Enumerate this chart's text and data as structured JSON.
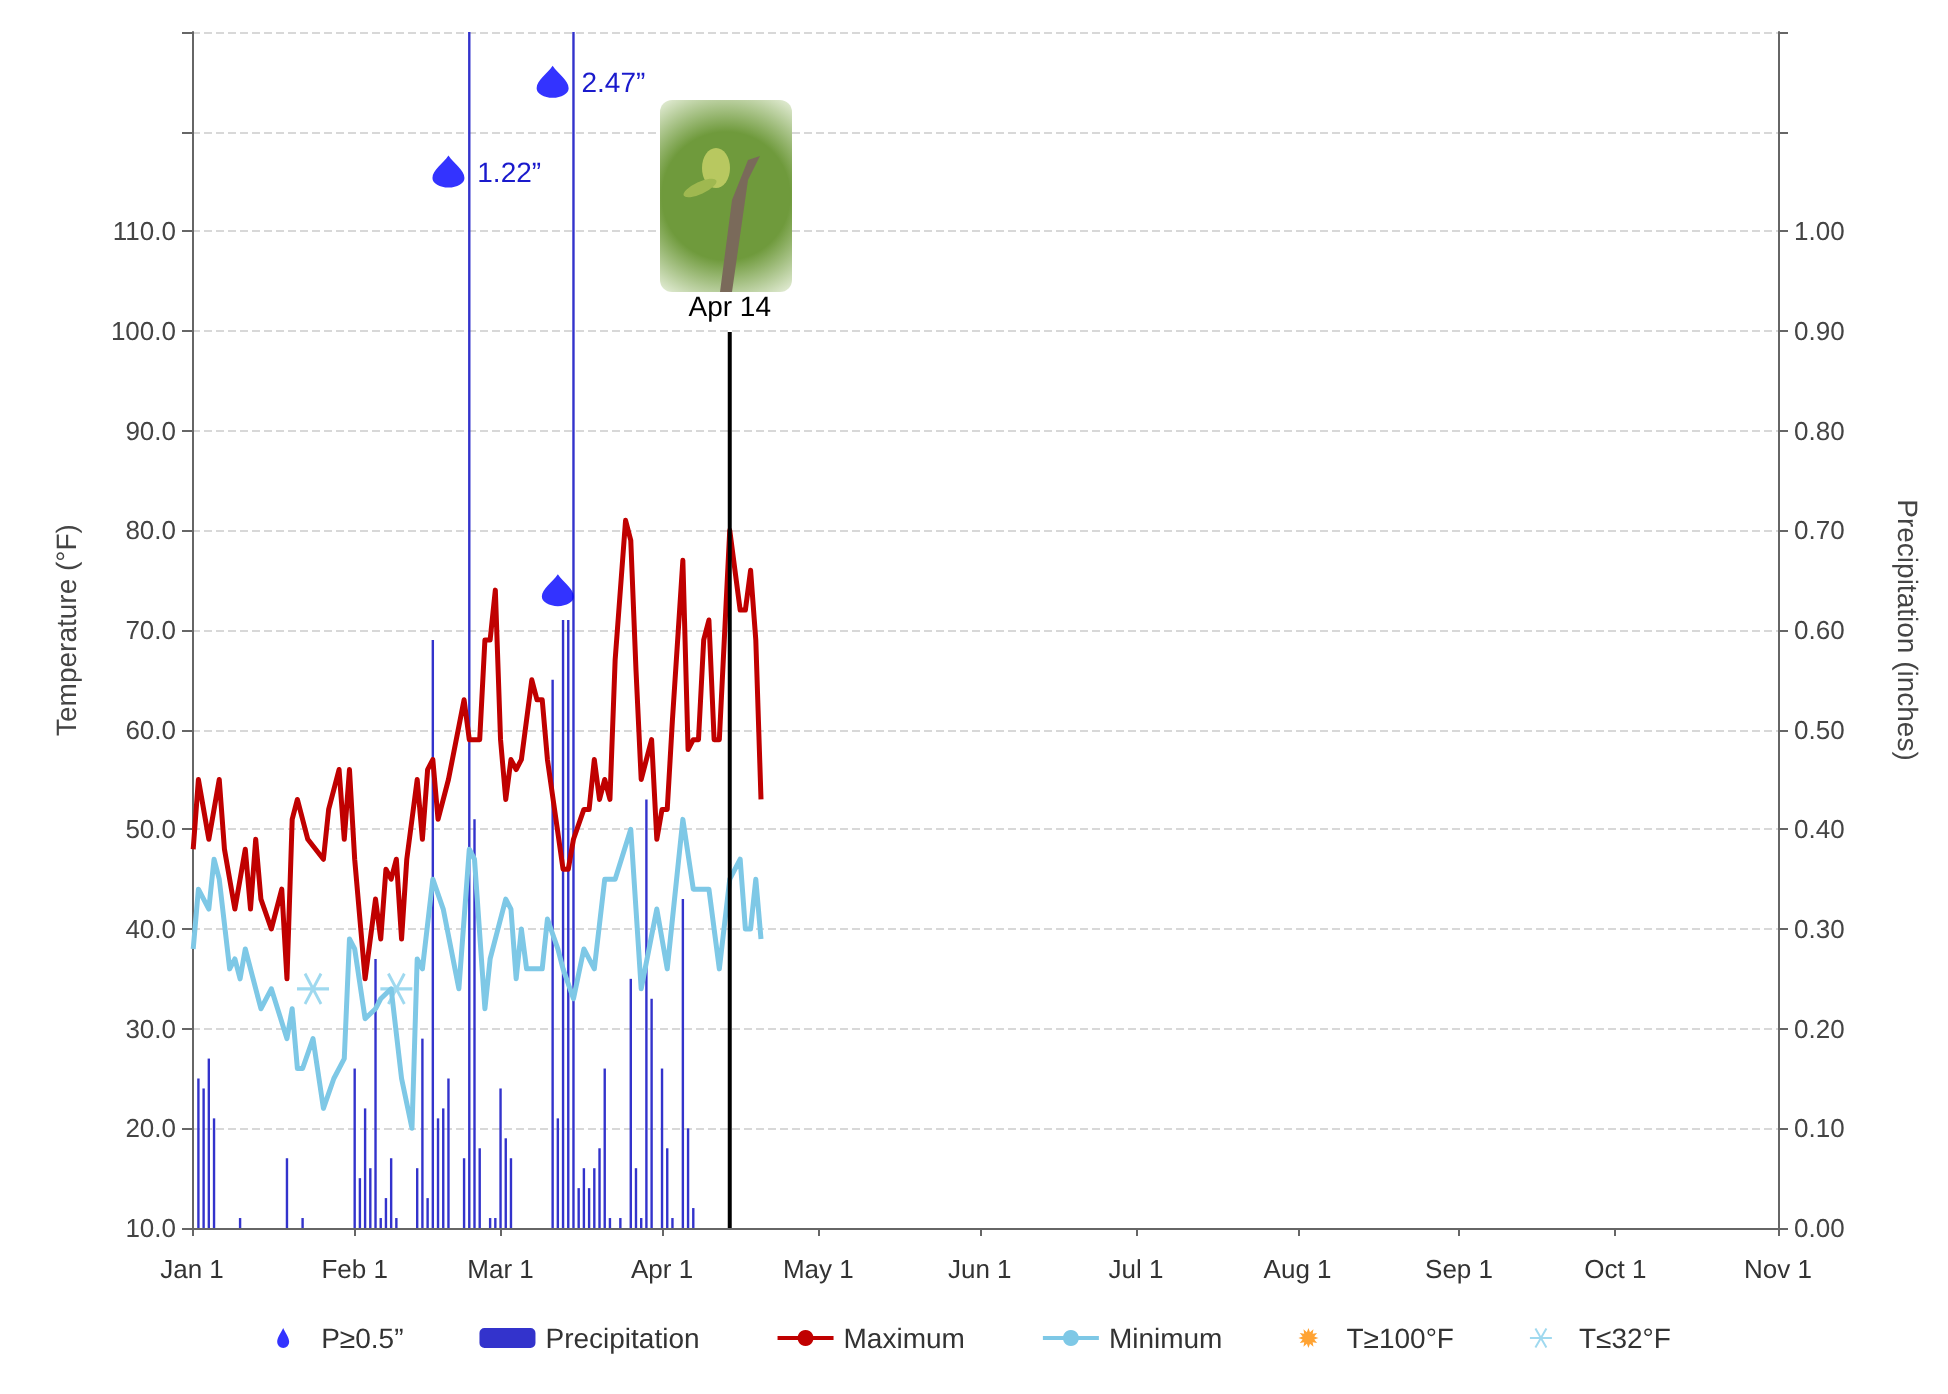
{
  "chart_data": {
    "type": "line",
    "ylabel": "Temperature (°F)",
    "y2label": "Precipitation (inches)",
    "xlim": [
      "--01-01",
      "--11-01"
    ],
    "xticks": [
      {
        "value": "--01-01",
        "label": "Jan 1"
      },
      {
        "value": "--02-01",
        "label": "Feb 1"
      },
      {
        "value": "--03-01",
        "label": "Mar 1"
      },
      {
        "value": "--04-01",
        "label": "Apr 1"
      },
      {
        "value": "--05-01",
        "label": "May 1"
      },
      {
        "value": "--06-01",
        "label": "Jun 1"
      },
      {
        "value": "--07-01",
        "label": "Jul 1"
      },
      {
        "value": "--08-01",
        "label": "Aug 1"
      },
      {
        "value": "--09-01",
        "label": "Sep 1"
      },
      {
        "value": "--10-01",
        "label": "Oct 1"
      },
      {
        "value": "--11-01",
        "label": "Nov 1"
      }
    ],
    "ylim": [
      10,
      130
    ],
    "yticks": [
      {
        "value": 10,
        "label": "10.0"
      },
      {
        "value": 20,
        "label": "20.0"
      },
      {
        "value": 30,
        "label": "30.0"
      },
      {
        "value": 40,
        "label": "40.0"
      },
      {
        "value": 50,
        "label": "50.0"
      },
      {
        "value": 60,
        "label": "60.0"
      },
      {
        "value": 70,
        "label": "70.0"
      },
      {
        "value": 80,
        "label": "80.0"
      },
      {
        "value": 90,
        "label": "90.0"
      },
      {
        "value": 100,
        "label": "100.0"
      },
      {
        "value": 110,
        "label": "110.0"
      },
      {
        "value": 120,
        "label": null
      },
      {
        "value": 130,
        "label": null
      }
    ],
    "y2lim": [
      0,
      1.2
    ],
    "y2ticks": [
      {
        "value": 0,
        "label": "0.00"
      },
      {
        "value": 0.1,
        "label": "0.10"
      },
      {
        "value": 0.2,
        "label": "0.20"
      },
      {
        "value": 0.3,
        "label": "0.30"
      },
      {
        "value": 0.4,
        "label": "0.40"
      },
      {
        "value": 0.5,
        "label": "0.50"
      },
      {
        "value": 0.6,
        "label": "0.60"
      },
      {
        "value": 0.7,
        "label": "0.70"
      },
      {
        "value": 0.8,
        "label": "0.80"
      },
      {
        "value": 0.9,
        "label": "0.90"
      },
      {
        "value": 1,
        "label": "1.00"
      },
      {
        "value": 1.1,
        "label": null
      },
      {
        "value": 1.2,
        "label": null
      }
    ],
    "grid": "y",
    "legend": "bottom",
    "ref_lines": [
      {
        "axis": "x",
        "value": "--02-23",
        "label": "1.22”",
        "color": "#3333cc"
      },
      {
        "axis": "x",
        "value": "--03-15",
        "label": "2.47”",
        "color": "#3333cc"
      },
      {
        "axis": "x",
        "value": "--04-14",
        "label": "Apr 14",
        "color": "#000000"
      }
    ],
    "series": [
      {
        "name": "P≥0.5”",
        "type": "scatter",
        "axis": "y2",
        "color": "#0000ff",
        "x": [
          "--02-19",
          "--03-11",
          "--03-12"
        ],
        "values": [
          1.06,
          1.15,
          0.64
        ]
      },
      {
        "name": "Precipitation",
        "type": "bar",
        "axis": "y2",
        "color": "#3333cc",
        "x": [
          "--01-02",
          "--01-03",
          "--01-04",
          "--01-05",
          "--01-10",
          "--01-19",
          "--01-22",
          "--02-01",
          "--02-02",
          "--02-03",
          "--02-04",
          "--02-05",
          "--02-06",
          "--02-07",
          "--02-08",
          "--02-09",
          "--02-13",
          "--02-14",
          "--02-15",
          "--02-16",
          "--02-17",
          "--02-18",
          "--02-19",
          "--02-22",
          "--02-23",
          "--02-24",
          "--02-25",
          "--02-27",
          "--02-28",
          "--03-01",
          "--03-02",
          "--03-03",
          "--03-11",
          "--03-12",
          "--03-13",
          "--03-14",
          "--03-15",
          "--03-16",
          "--03-17",
          "--03-18",
          "--03-19",
          "--03-20",
          "--03-21",
          "--03-22",
          "--03-24",
          "--03-26",
          "--03-27",
          "--03-28",
          "--03-29",
          "--03-30",
          "--04-01",
          "--04-02",
          "--04-03",
          "--04-05",
          "--04-06",
          "--04-07"
        ],
        "values": [
          0.15,
          0.14,
          0.17,
          0.11,
          0.01,
          0.07,
          0.01,
          0.16,
          0.05,
          0.12,
          0.06,
          0.27,
          0.01,
          0.03,
          0.07,
          0.01,
          0.06,
          0.19,
          0.03,
          0.59,
          0.11,
          0.12,
          0.15,
          0.07,
          null,
          0.41,
          0.08,
          0.01,
          0.01,
          0.14,
          0.09,
          0.07,
          0.55,
          0.11,
          0.61,
          0.61,
          null,
          0.04,
          0.06,
          0.04,
          0.06,
          0.08,
          0.16,
          0.01,
          0.01,
          0.25,
          0.06,
          0.01,
          0.43,
          0.23,
          0.16,
          0.08,
          0.01,
          0.33,
          0.1,
          0.02
        ]
      },
      {
        "name": "Maximum",
        "color": "#c00000",
        "x": [
          "--01-01",
          "--01-02",
          "--01-04",
          "--01-06",
          "--01-07",
          "--01-09",
          "--01-11",
          "--01-12",
          "--01-13",
          "--01-14",
          "--01-16",
          "--01-18",
          "--01-19",
          "--01-20",
          "--01-21",
          "--01-23",
          "--01-26",
          "--01-27",
          "--01-29",
          "--01-30",
          "--01-31",
          "--02-01",
          "--02-03",
          "--02-05",
          "--02-06",
          "--02-07",
          "--02-08",
          "--02-09",
          "--02-10",
          "--02-11",
          "--02-13",
          "--02-14",
          "--02-15",
          "--02-16",
          "--02-17",
          "--02-19",
          "--02-22",
          "--02-23",
          "--02-25",
          "--02-26",
          "--02-27",
          "--02-28",
          "--03-01",
          "--03-02",
          "--03-03",
          "--03-04",
          "--03-05",
          "--03-07",
          "--03-08",
          "--03-09",
          "--03-10",
          "--03-13",
          "--03-14",
          "--03-15",
          "--03-17",
          "--03-18",
          "--03-19",
          "--03-20",
          "--03-21",
          "--03-22",
          "--03-23",
          "--03-25",
          "--03-26",
          "--03-27",
          "--03-28",
          "--03-30",
          "--03-31",
          "--04-01",
          "--04-02",
          "--04-03",
          "--04-05",
          "--04-06",
          "--04-07",
          "--04-08",
          "--04-09",
          "--04-10",
          "--04-11",
          "--04-12",
          "--04-14",
          "--04-16",
          "--04-17",
          "--04-18",
          "--04-19",
          "--04-20"
        ],
        "values": [
          48,
          55,
          49,
          55,
          48,
          42,
          48,
          42,
          49,
          43,
          40,
          44,
          35,
          51,
          53,
          49,
          47,
          52,
          56,
          49,
          56,
          47,
          35,
          43,
          39,
          46,
          45,
          47,
          39,
          47,
          55,
          49,
          56,
          57,
          51,
          55,
          63,
          59,
          59,
          69,
          69,
          74,
          59,
          53,
          57,
          56,
          57,
          65,
          63,
          63,
          57,
          46,
          46,
          49,
          52,
          52,
          57,
          53,
          55,
          53,
          67,
          81,
          79,
          66,
          55,
          59,
          49,
          52,
          52,
          61,
          77,
          58,
          59,
          59,
          69,
          71,
          59,
          59,
          80,
          72,
          72,
          76,
          69,
          53
        ]
      },
      {
        "name": "Minimum",
        "color": "#7ec8e6",
        "x": [
          "--01-01",
          "--01-02",
          "--01-04",
          "--01-05",
          "--01-06",
          "--01-08",
          "--01-09",
          "--01-10",
          "--01-11",
          "--01-14",
          "--01-16",
          "--01-19",
          "--01-20",
          "--01-21",
          "--01-22",
          "--01-24",
          "--01-26",
          "--01-28",
          "--01-30",
          "--01-31",
          "--02-01",
          "--02-03",
          "--02-05",
          "--02-06",
          "--02-08",
          "--02-10",
          "--02-12",
          "--02-13",
          "--02-14",
          "--02-16",
          "--02-18",
          "--02-21",
          "--02-23",
          "--02-24",
          "--02-26",
          "--02-27",
          "--03-02",
          "--03-03",
          "--03-04",
          "--03-05",
          "--03-06",
          "--03-09",
          "--03-10",
          "--03-12",
          "--03-13",
          "--03-15",
          "--03-17",
          "--03-19",
          "--03-21",
          "--03-22",
          "--03-23",
          "--03-26",
          "--03-27",
          "--03-28",
          "--03-31",
          "--04-02",
          "--04-05",
          "--04-07",
          "--04-10",
          "--04-12",
          "--04-14",
          "--04-16",
          "--04-17",
          "--04-18",
          "--04-19",
          "--04-20"
        ],
        "values": [
          38,
          44,
          42,
          47,
          45,
          36,
          37,
          35,
          38,
          32,
          34,
          29,
          32,
          26,
          26,
          29,
          22,
          25,
          27,
          39,
          38,
          31,
          32,
          33,
          34,
          25,
          20,
          37,
          36,
          45,
          42,
          34,
          48,
          47,
          32,
          37,
          43,
          42,
          35,
          40,
          36,
          36,
          41,
          38,
          36,
          33,
          38,
          36,
          45,
          45,
          45,
          50,
          42,
          34,
          42,
          36,
          51,
          44,
          44,
          36,
          45,
          47,
          40,
          40,
          45,
          39
        ]
      },
      {
        "name": "T≥100°F",
        "type": "scatter",
        "color": "#ff8c00"
      },
      {
        "name": "T≤32°F",
        "type": "scatter",
        "color": "#87cfeb",
        "x": [
          "--01-24",
          "--02-09"
        ],
        "values": [
          34,
          34
        ]
      }
    ]
  }
}
